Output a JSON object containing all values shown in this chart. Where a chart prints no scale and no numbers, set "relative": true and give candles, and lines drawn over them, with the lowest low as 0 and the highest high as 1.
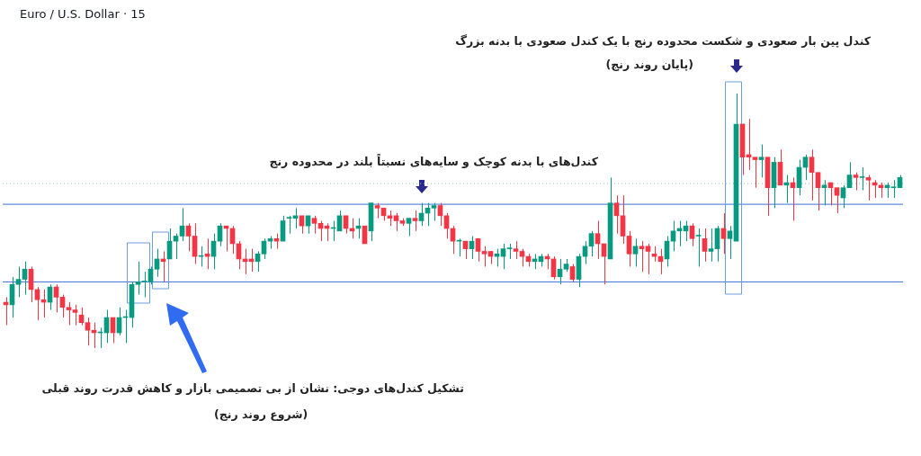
{
  "chart_data": {
    "type": "candlestick",
    "title": "Euro / U.S. Dollar · 15",
    "relative": true,
    "tick_labels": false,
    "annotations": [
      "کندل پین بار صعودی و شکست محدوده رنج با یک کندل صعودی با بدنه بزرگ",
      "(پایان روند رنج)",
      "کندل‌های با بدنه کوچک و سایه‌های نسبتاً بلند  در محدوده رنج",
      "تشکیل کندل‌های دوجی: نشان از بی تصمیمی بازار و کاهش قدرت روند قبلی",
      "(شروع روند رنج)"
    ],
    "ref_lines": [
      {
        "axis": "y",
        "value": 0.565,
        "color": "#3c6fd9",
        "line_style": "solid"
      },
      {
        "axis": "y",
        "value": 0.26,
        "color": "#3c6fd9",
        "line_style": "solid"
      },
      {
        "axis": "y",
        "value": 0.646,
        "color": "#7fc4a8",
        "line_style": "dotted"
      }
    ],
    "categories": [
      null,
      null,
      null,
      null,
      null,
      null,
      null,
      null,
      null,
      null,
      null,
      null,
      null,
      null,
      null,
      null,
      null,
      null,
      null,
      null,
      null,
      null,
      null,
      null,
      null,
      null,
      null,
      null,
      null,
      null,
      null,
      null,
      null,
      null,
      null,
      null,
      null,
      null,
      null,
      null,
      null,
      null,
      null,
      null,
      null,
      null,
      null,
      null,
      null,
      null,
      null,
      null,
      null,
      null,
      null,
      null,
      null,
      null,
      null,
      null,
      null,
      null,
      null,
      null,
      null,
      null,
      null,
      null,
      null,
      null,
      null,
      null,
      null,
      null,
      null,
      null,
      null,
      null,
      null,
      null,
      null,
      null,
      null,
      null,
      null,
      null,
      null,
      null,
      null,
      null,
      null,
      null,
      null,
      null,
      null,
      null,
      null,
      null,
      null,
      null,
      null,
      null,
      null,
      null,
      null,
      null,
      null,
      null,
      null,
      null,
      null,
      null,
      null,
      null,
      null,
      null,
      null,
      null,
      null,
      null,
      null,
      null,
      null,
      null,
      null,
      null,
      null,
      null,
      null,
      null,
      null,
      null,
      null,
      null,
      null,
      null,
      null,
      null,
      null,
      null,
      null,
      null,
      null
    ],
    "ohlc": [
      [
        0.18,
        0.2,
        0.09,
        0.17
      ],
      [
        0.17,
        0.28,
        0.12,
        0.25
      ],
      [
        0.25,
        0.32,
        0.2,
        0.27
      ],
      [
        0.27,
        0.34,
        0.21,
        0.31
      ],
      [
        0.31,
        0.32,
        0.18,
        0.23
      ],
      [
        0.23,
        0.24,
        0.11,
        0.19
      ],
      [
        0.19,
        0.23,
        0.12,
        0.18
      ],
      [
        0.18,
        0.25,
        0.15,
        0.24
      ],
      [
        0.24,
        0.25,
        0.14,
        0.2
      ],
      [
        0.2,
        0.21,
        0.12,
        0.16
      ],
      [
        0.16,
        0.18,
        0.09,
        0.15
      ],
      [
        0.15,
        0.17,
        0.09,
        0.14
      ],
      [
        0.13,
        0.16,
        0.09,
        0.1
      ],
      [
        0.1,
        0.12,
        0.01,
        0.07
      ],
      [
        0.07,
        0.1,
        0,
        0.06
      ],
      [
        0.06,
        0.08,
        0,
        0.06
      ],
      [
        0.06,
        0.15,
        0.02,
        0.12
      ],
      [
        0.12,
        0.12,
        0.02,
        0.06
      ],
      [
        0.06,
        0.16,
        0.05,
        0.12
      ],
      [
        0.12,
        0.15,
        0.02,
        0.12
      ],
      [
        0.12,
        0.26,
        0.08,
        0.25
      ],
      [
        0.25,
        0.34,
        0.21,
        0.26
      ],
      [
        0.26,
        0.3,
        0.2,
        0.26
      ],
      [
        0.26,
        0.32,
        0.25,
        0.31
      ],
      [
        0.31,
        0.39,
        0.28,
        0.35
      ],
      [
        0.35,
        0.38,
        0.26,
        0.34
      ],
      [
        0.35,
        0.47,
        0.35,
        0.42
      ],
      [
        0.42,
        0.45,
        0.35,
        0.44
      ],
      [
        0.44,
        0.55,
        0.42,
        0.48
      ],
      [
        0.48,
        0.49,
        0.38,
        0.44
      ],
      [
        0.44,
        0.49,
        0.33,
        0.36
      ],
      [
        0.36,
        0.4,
        0.32,
        0.36
      ],
      [
        0.37,
        0.43,
        0.31,
        0.36
      ],
      [
        0.36,
        0.45,
        0.31,
        0.42
      ],
      [
        0.42,
        0.49,
        0.4,
        0.48
      ],
      [
        0.48,
        0.48,
        0.38,
        0.47
      ],
      [
        0.47,
        0.48,
        0.37,
        0.41
      ],
      [
        0.41,
        0.42,
        0.31,
        0.35
      ],
      [
        0.35,
        0.39,
        0.29,
        0.34
      ],
      [
        0.35,
        0.39,
        0.3,
        0.34
      ],
      [
        0.34,
        0.38,
        0.3,
        0.37
      ],
      [
        0.37,
        0.43,
        0.35,
        0.42
      ],
      [
        0.42,
        0.44,
        0.39,
        0.43
      ],
      [
        0.43,
        0.45,
        0.39,
        0.42
      ],
      [
        0.42,
        0.52,
        0.42,
        0.5
      ],
      [
        0.51,
        0.52,
        0.45,
        0.51
      ],
      [
        0.51,
        0.55,
        0.47,
        0.52
      ],
      [
        0.52,
        0.52,
        0.45,
        0.48
      ],
      [
        0.48,
        0.52,
        0.45,
        0.52
      ],
      [
        0.51,
        0.52,
        0.45,
        0.49
      ],
      [
        0.49,
        0.5,
        0.42,
        0.47
      ],
      [
        0.48,
        0.49,
        0.42,
        0.47
      ],
      [
        0.47,
        0.5,
        0.42,
        0.47
      ],
      [
        0.46,
        0.54,
        0.46,
        0.52
      ],
      [
        0.52,
        0.52,
        0.45,
        0.47
      ],
      [
        0.47,
        0.51,
        0.43,
        0.46
      ],
      [
        0.47,
        0.51,
        0.43,
        0.48
      ],
      [
        0.48,
        0.48,
        0.41,
        0.41
      ],
      [
        0.46,
        0.57,
        0.42,
        0.57
      ],
      [
        0.56,
        0.57,
        0.51,
        0.55
      ],
      [
        0.55,
        0.55,
        0.5,
        0.52
      ],
      [
        0.52,
        0.54,
        0.48,
        0.51
      ],
      [
        0.52,
        0.53,
        0.46,
        0.5
      ],
      [
        0.5,
        0.51,
        0.48,
        0.49
      ],
      [
        0.49,
        0.51,
        0.44,
        0.51
      ],
      [
        0.51,
        0.54,
        0.46,
        0.5
      ],
      [
        0.5,
        0.57,
        0.48,
        0.53
      ],
      [
        0.53,
        0.57,
        0.48,
        0.55
      ],
      [
        0.55,
        0.57,
        0.5,
        0.56
      ],
      [
        0.56,
        0.57,
        0.48,
        0.52
      ],
      [
        0.52,
        0.53,
        0.43,
        0.47
      ],
      [
        0.47,
        0.48,
        0.37,
        0.42
      ],
      [
        0.42,
        0.43,
        0.36,
        0.42
      ],
      [
        0.42,
        0.42,
        0.35,
        0.39
      ],
      [
        0.39,
        0.44,
        0.35,
        0.42
      ],
      [
        0.43,
        0.43,
        0.34,
        0.38
      ],
      [
        0.38,
        0.4,
        0.32,
        0.37
      ],
      [
        0.38,
        0.38,
        0.33,
        0.36
      ],
      [
        0.36,
        0.39,
        0.32,
        0.37
      ],
      [
        0.36,
        0.41,
        0.31,
        0.39
      ],
      [
        0.39,
        0.41,
        0.35,
        0.39
      ],
      [
        0.39,
        0.42,
        0.35,
        0.38
      ],
      [
        0.38,
        0.39,
        0.32,
        0.36
      ],
      [
        0.36,
        0.37,
        0.32,
        0.34
      ],
      [
        0.34,
        0.37,
        0.31,
        0.35
      ],
      [
        0.34,
        0.37,
        0.32,
        0.36
      ],
      [
        0.36,
        0.37,
        0.31,
        0.35
      ],
      [
        0.35,
        0.36,
        0.27,
        0.28
      ],
      [
        0.28,
        0.35,
        0.25,
        0.31
      ],
      [
        0.31,
        0.35,
        0.3,
        0.33
      ],
      [
        0.32,
        0.33,
        0.26,
        0.27
      ],
      [
        0.27,
        0.37,
        0.24,
        0.36
      ],
      [
        0.36,
        0.42,
        0.33,
        0.4
      ],
      [
        0.4,
        0.46,
        0.36,
        0.45
      ],
      [
        0.45,
        0.5,
        0.35,
        0.41
      ],
      [
        0.41,
        0.41,
        0.25,
        0.36
      ],
      [
        0.35,
        0.67,
        0.35,
        0.57
      ],
      [
        0.57,
        0.6,
        0.45,
        0.52
      ],
      [
        0.52,
        0.6,
        0.41,
        0.44
      ],
      [
        0.44,
        0.46,
        0.32,
        0.37
      ],
      [
        0.37,
        0.43,
        0.32,
        0.4
      ],
      [
        0.4,
        0.42,
        0.3,
        0.39
      ],
      [
        0.4,
        0.41,
        0.29,
        0.38
      ],
      [
        0.37,
        0.4,
        0.34,
        0.36
      ],
      [
        0.36,
        0.39,
        0.29,
        0.34
      ],
      [
        0.35,
        0.44,
        0.32,
        0.42
      ],
      [
        0.42,
        0.5,
        0.38,
        0.46
      ],
      [
        0.46,
        0.5,
        0.4,
        0.47
      ],
      [
        0.46,
        0.5,
        0.42,
        0.48
      ],
      [
        0.48,
        0.49,
        0.4,
        0.43
      ],
      [
        0.44,
        0.47,
        0.32,
        0.44
      ],
      [
        0.43,
        0.47,
        0.34,
        0.38
      ],
      [
        0.38,
        0.47,
        0.34,
        0.39
      ],
      [
        0.39,
        0.48,
        0.34,
        0.47
      ],
      [
        0.47,
        0.53,
        0.37,
        0.43
      ],
      [
        0.43,
        0.48,
        0.35,
        0.46
      ],
      [
        0.42,
        1,
        0.42,
        0.88
      ],
      [
        0.88,
        0.88,
        0.68,
        0.75
      ],
      [
        0.76,
        0.9,
        0.7,
        0.75
      ],
      [
        0.75,
        0.75,
        0.63,
        0.74
      ],
      [
        0.74,
        0.8,
        0.67,
        0.75
      ],
      [
        0.75,
        0.75,
        0.52,
        0.63
      ],
      [
        0.63,
        0.75,
        0.55,
        0.73
      ],
      [
        0.73,
        0.78,
        0.64,
        0.64
      ],
      [
        0.64,
        0.68,
        0.57,
        0.65
      ],
      [
        0.65,
        0.67,
        0.5,
        0.63
      ],
      [
        0.63,
        0.74,
        0.6,
        0.71
      ],
      [
        0.71,
        0.76,
        0.66,
        0.75
      ],
      [
        0.75,
        0.78,
        0.58,
        0.69
      ],
      [
        0.69,
        0.69,
        0.54,
        0.63
      ],
      [
        0.63,
        0.66,
        0.56,
        0.64
      ],
      [
        0.65,
        0.65,
        0.56,
        0.63
      ],
      [
        0.63,
        0.63,
        0.53,
        0.6
      ],
      [
        0.59,
        0.64,
        0.55,
        0.63
      ],
      [
        0.63,
        0.73,
        0.63,
        0.68
      ],
      [
        0.68,
        0.69,
        0.62,
        0.67
      ],
      [
        0.67,
        0.71,
        0.62,
        0.67
      ],
      [
        0.67,
        0.68,
        0.58,
        0.66
      ],
      [
        0.65,
        0.66,
        0.59,
        0.64
      ],
      [
        0.64,
        0.65,
        0.59,
        0.63
      ],
      [
        0.63,
        0.65,
        0.59,
        0.64
      ],
      [
        0.63,
        0.66,
        0.59,
        0.63
      ],
      [
        0.63,
        0.68,
        0.63,
        0.67
      ]
    ],
    "colors": [
      "#f23645",
      "#089981",
      "#089981",
      "#089981",
      "#f23645",
      "#f23645",
      "#f23645",
      "#089981",
      "#f23645",
      "#f23645",
      "#f23645",
      "#f23645",
      "#f23645",
      "#f23645",
      "#f23645",
      "#089981",
      "#089981",
      "#f23645",
      "#089981",
      "#089981",
      "#089981",
      "#089981",
      "#089981",
      "#089981",
      "#089981",
      "#f23645",
      "#089981",
      "#089981",
      "#089981",
      "#f23645",
      "#f23645",
      "#089981",
      "#f23645",
      "#089981",
      "#089981",
      "#f23645",
      "#f23645",
      "#f23645",
      "#f23645",
      "#f23645",
      "#089981",
      "#089981",
      "#089981",
      "#f23645",
      "#089981",
      "#089981",
      "#089981",
      "#f23645",
      "#089981",
      "#f23645",
      "#f23645",
      "#f23645",
      "#089981",
      "#089981",
      "#f23645",
      "#f23645",
      "#089981",
      "#f23645",
      "#089981",
      "#f23645",
      "#f23645",
      "#f23645",
      "#f23645",
      "#f23645",
      "#089981",
      "#f23645",
      "#089981",
      "#089981",
      "#089981",
      "#f23645",
      "#f23645",
      "#f23645",
      "#089981",
      "#f23645",
      "#089981",
      "#f23645",
      "#f23645",
      "#f23645",
      "#089981",
      "#089981",
      "#089981",
      "#f23645",
      "#f23645",
      "#f23645",
      "#089981",
      "#089981",
      "#f23645",
      "#f23645",
      "#089981",
      "#089981",
      "#f23645",
      "#089981",
      "#089981",
      "#089981",
      "#f23645",
      "#f23645",
      "#089981",
      "#f23645",
      "#f23645",
      "#f23645",
      "#089981",
      "#f23645",
      "#f23645",
      "#f23645",
      "#f23645",
      "#089981",
      "#089981",
      "#089981",
      "#089981",
      "#f23645",
      "#089981",
      "#f23645",
      "#089981",
      "#089981",
      "#f23645",
      "#089981",
      "#089981",
      "#f23645",
      "#f23645",
      "#f23645",
      "#089981",
      "#f23645",
      "#089981",
      "#f23645",
      "#089981",
      "#f23645",
      "#089981",
      "#089981",
      "#f23645",
      "#f23645",
      "#089981",
      "#f23645",
      "#f23645",
      "#089981",
      "#089981",
      "#f23645",
      "#089981",
      "#f23645",
      "#f23645",
      "#f23645",
      "#089981",
      "#089981",
      "#089981"
    ]
  }
}
